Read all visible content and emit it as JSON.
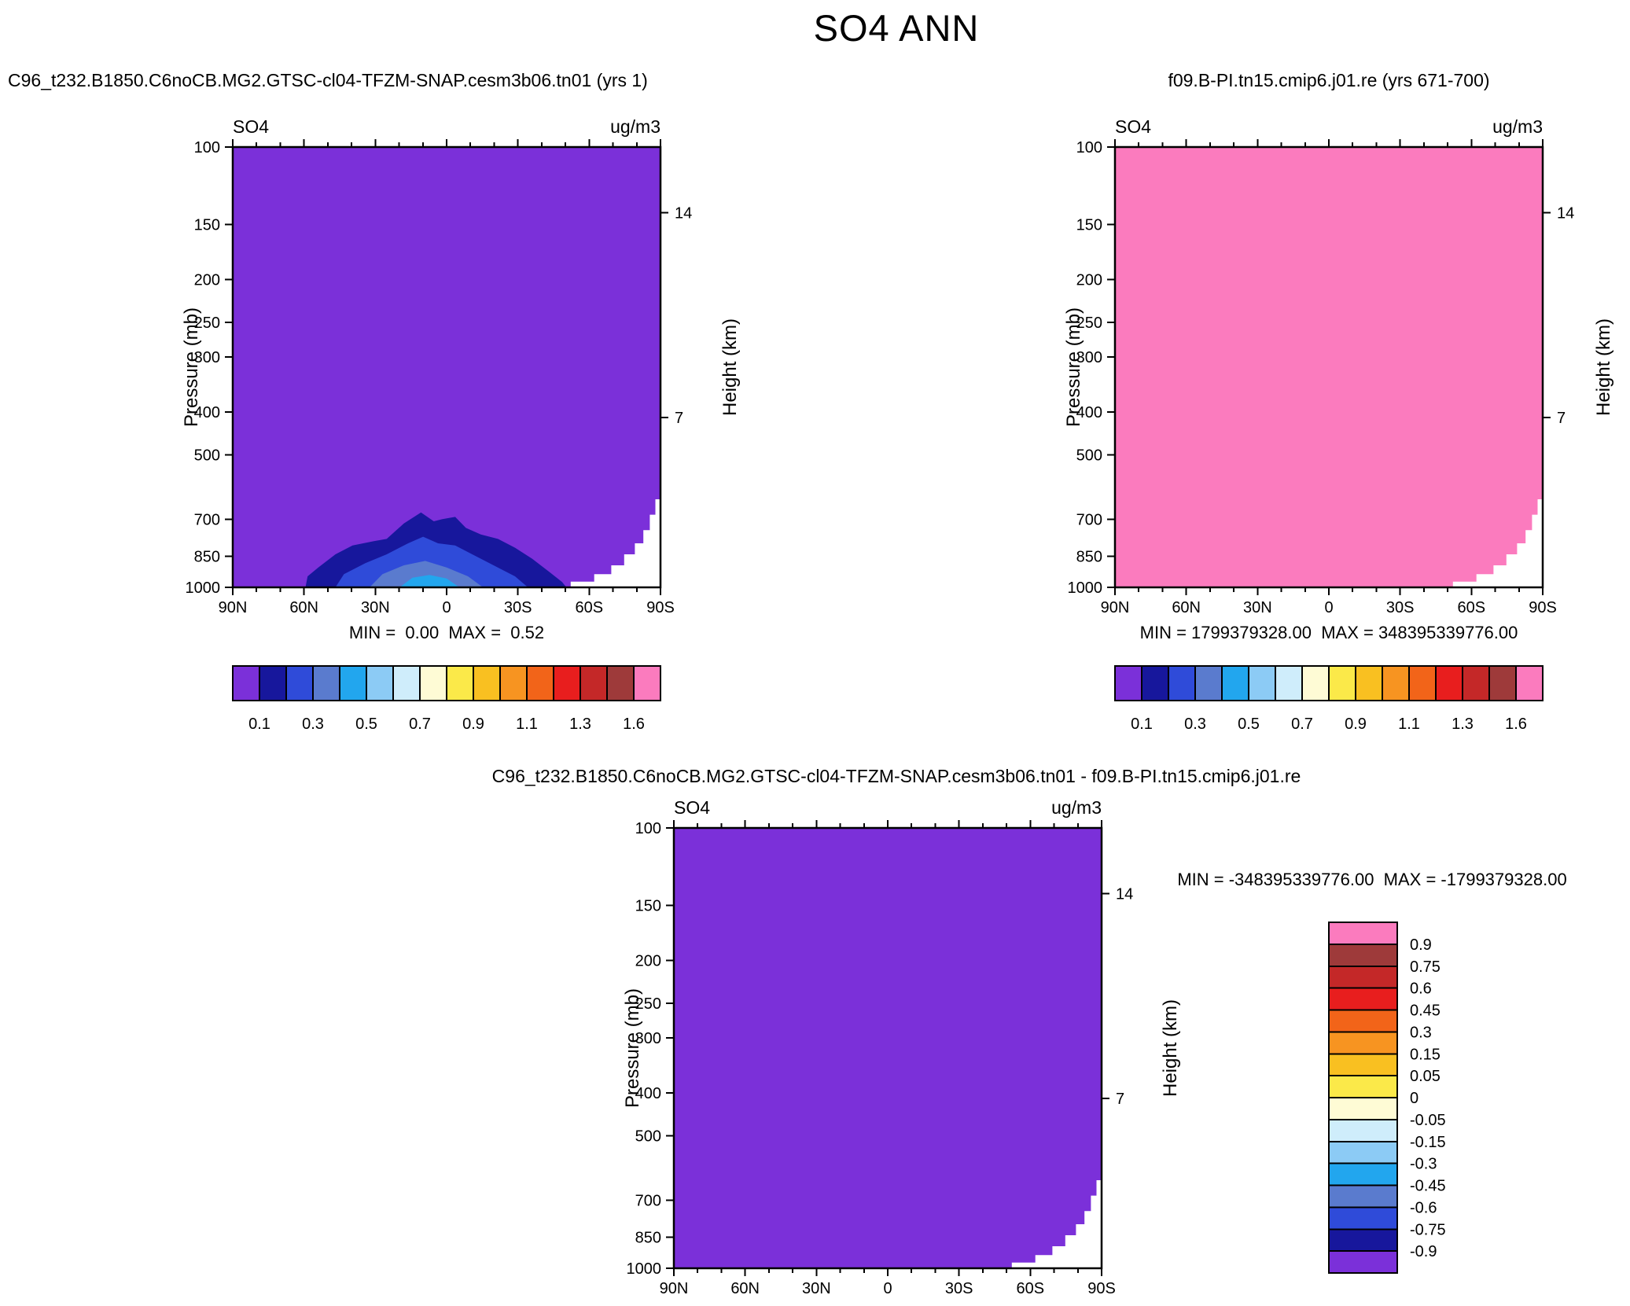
{
  "title": "SO4 ANN",
  "colormap": [
    "#7B30D9",
    "#17179C",
    "#2F4BD9",
    "#5A7BCE",
    "#22A6EE",
    "#8CCBF5",
    "#CFEDFB",
    "#FEFBD5",
    "#FBE949",
    "#F9C021",
    "#F79421",
    "#F26419",
    "#E81E1E",
    "#C42828",
    "#9E3A3A",
    "#FB7BBE"
  ],
  "chart_data": [
    {
      "type": "filled-contour",
      "title": "C96_t232.B1850.C6noCB.MG2.GTSC-cl04-TFZM-SNAP.cesm3b06.tn01 (yrs 1)",
      "variable": "SO4",
      "units": "ug/m3",
      "season": "ANN",
      "min": 0.0,
      "max": 0.52,
      "minmax_text": "MIN =  0.00  MAX =  0.52",
      "xaxis": {
        "ticks": [
          "90N",
          "60N",
          "30N",
          "0",
          "30S",
          "60S",
          "90S"
        ]
      },
      "yaxis": {
        "label": "Pressure (mb)",
        "scale": "log",
        "ticks": [
          100,
          150,
          200,
          250,
          300,
          400,
          500,
          700,
          850,
          1000
        ]
      },
      "yaxis2": {
        "label": "Height (km)",
        "ticks": [
          14,
          7
        ],
        "tick_pressures": [
          141,
          411
        ]
      },
      "colorbar": {
        "orientation": "horizontal",
        "labels": [
          "0.1",
          "0.3",
          "0.5",
          "0.7",
          "0.9",
          "1.1",
          "1.3",
          "1.6"
        ]
      },
      "field": {
        "description": "Zonal-mean SO4: below 0.1 ug/m3 (purple) almost everywhere; values rise to ~0.5 ug/m3 near the surface between ~35N and ~45S, peaking near 700 mb over the tropics; white stepped topography mask near 90S",
        "background_color_index": 0,
        "contours": [
          {
            "level": "0.1-0.2",
            "color_index": 1,
            "points": [
              [
                0.17,
                0
              ],
              [
                0.175,
                0.025
              ],
              [
                0.2,
                0.045
              ],
              [
                0.24,
                0.075
              ],
              [
                0.28,
                0.095
              ],
              [
                0.33,
                0.105
              ],
              [
                0.36,
                0.11
              ],
              [
                0.4,
                0.145
              ],
              [
                0.44,
                0.17
              ],
              [
                0.47,
                0.15
              ],
              [
                0.49,
                0.155
              ],
              [
                0.52,
                0.16
              ],
              [
                0.545,
                0.135
              ],
              [
                0.58,
                0.12
              ],
              [
                0.62,
                0.11
              ],
              [
                0.66,
                0.09
              ],
              [
                0.7,
                0.065
              ],
              [
                0.74,
                0.035
              ],
              [
                0.77,
                0.012
              ],
              [
                0.78,
                0
              ]
            ]
          },
          {
            "level": "0.2-0.3",
            "color_index": 2,
            "points": [
              [
                0.24,
                0
              ],
              [
                0.26,
                0.03
              ],
              [
                0.31,
                0.055
              ],
              [
                0.36,
                0.075
              ],
              [
                0.41,
                0.1
              ],
              [
                0.445,
                0.115
              ],
              [
                0.48,
                0.1
              ],
              [
                0.52,
                0.095
              ],
              [
                0.56,
                0.075
              ],
              [
                0.61,
                0.05
              ],
              [
                0.66,
                0.025
              ],
              [
                0.69,
                0
              ]
            ]
          },
          {
            "level": "0.3-0.4",
            "color_index": 3,
            "points": [
              [
                0.32,
                0
              ],
              [
                0.35,
                0.03
              ],
              [
                0.4,
                0.05
              ],
              [
                0.45,
                0.06
              ],
              [
                0.5,
                0.045
              ],
              [
                0.55,
                0.025
              ],
              [
                0.585,
                0
              ]
            ]
          },
          {
            "level": "0.4-0.52",
            "color_index": 4,
            "points": [
              [
                0.39,
                0
              ],
              [
                0.42,
                0.022
              ],
              [
                0.46,
                0.028
              ],
              [
                0.5,
                0.02
              ],
              [
                0.53,
                0
              ]
            ]
          }
        ],
        "topo": [
          [
            0.79,
            0
          ],
          [
            0.79,
            0.013
          ],
          [
            0.845,
            0.013
          ],
          [
            0.845,
            0.03
          ],
          [
            0.885,
            0.03
          ],
          [
            0.885,
            0.05
          ],
          [
            0.915,
            0.05
          ],
          [
            0.915,
            0.075
          ],
          [
            0.94,
            0.075
          ],
          [
            0.94,
            0.1
          ],
          [
            0.96,
            0.1
          ],
          [
            0.96,
            0.13
          ],
          [
            0.975,
            0.13
          ],
          [
            0.975,
            0.165
          ],
          [
            0.988,
            0.165
          ],
          [
            0.988,
            0.2
          ],
          [
            1.0,
            0.2
          ],
          [
            1.0,
            0
          ]
        ]
      }
    },
    {
      "type": "filled-contour",
      "title": "f09.B-PI.tn15.cmip6.j01.re (yrs 671-700)",
      "variable": "SO4",
      "units": "ug/m3",
      "season": "ANN",
      "min": 1799379328.0,
      "max": 348395339776.0,
      "minmax_text": "MIN = 1799379328.00  MAX = 348395339776.00",
      "xaxis": {
        "ticks": [
          "90N",
          "60N",
          "30N",
          "0",
          "30S",
          "60S",
          "90S"
        ]
      },
      "yaxis": {
        "label": "Pressure (mb)",
        "scale": "log",
        "ticks": [
          100,
          150,
          200,
          250,
          300,
          400,
          500,
          700,
          850,
          1000
        ]
      },
      "yaxis2": {
        "label": "Height (km)",
        "ticks": [
          14,
          7
        ],
        "tick_pressures": [
          141,
          411
        ]
      },
      "colorbar": {
        "orientation": "horizontal",
        "labels": [
          "0.1",
          "0.3",
          "0.5",
          "0.7",
          "0.9",
          "1.1",
          "1.3",
          "1.6"
        ]
      },
      "field": {
        "description": "Field exceeds the highest contour level (1.6) everywhere, so the entire cross-section is the top color (pink); white stepped topography mask near 90S",
        "background_color_index": 15,
        "contours": [],
        "topo": [
          [
            0.79,
            0
          ],
          [
            0.79,
            0.013
          ],
          [
            0.845,
            0.013
          ],
          [
            0.845,
            0.03
          ],
          [
            0.885,
            0.03
          ],
          [
            0.885,
            0.05
          ],
          [
            0.915,
            0.05
          ],
          [
            0.915,
            0.075
          ],
          [
            0.94,
            0.075
          ],
          [
            0.94,
            0.1
          ],
          [
            0.96,
            0.1
          ],
          [
            0.96,
            0.13
          ],
          [
            0.975,
            0.13
          ],
          [
            0.975,
            0.165
          ],
          [
            0.988,
            0.165
          ],
          [
            0.988,
            0.2
          ],
          [
            1.0,
            0.2
          ],
          [
            1.0,
            0
          ]
        ]
      }
    },
    {
      "type": "filled-contour-difference",
      "title": "C96_t232.B1850.C6noCB.MG2.GTSC-cl04-TFZM-SNAP.cesm3b06.tn01 - f09.B-PI.tn15.cmip6.j01.re",
      "variable": "SO4",
      "units": "ug/m3",
      "season": "ANN",
      "min": -348395339776.0,
      "max": -1799379328.0,
      "minmax_text": "MIN = -348395339776.00  MAX = -1799379328.00",
      "xaxis": {
        "ticks": [
          "90N",
          "60N",
          "30N",
          "0",
          "30S",
          "60S",
          "90S"
        ]
      },
      "yaxis": {
        "label": "Pressure (mb)",
        "scale": "log",
        "ticks": [
          100,
          150,
          200,
          250,
          300,
          400,
          500,
          700,
          850,
          1000
        ]
      },
      "yaxis2": {
        "label": "Height (km)",
        "ticks": [
          14,
          7
        ],
        "tick_pressures": [
          141,
          411
        ]
      },
      "colorbar": {
        "orientation": "vertical",
        "labels": [
          "0.9",
          "0.75",
          "0.6",
          "0.45",
          "0.3",
          "0.15",
          "0.05",
          "0",
          "-0.05",
          "-0.15",
          "-0.3",
          "-0.45",
          "-0.6",
          "-0.75",
          "-0.9"
        ]
      },
      "field": {
        "description": "Difference is below the lowest level (-0.9) everywhere, so the entire cross-section is the bottom color (purple); white stepped topography mask near 90S",
        "background_color_index": 0,
        "contours": [],
        "topo": [
          [
            0.79,
            0
          ],
          [
            0.79,
            0.013
          ],
          [
            0.845,
            0.013
          ],
          [
            0.845,
            0.03
          ],
          [
            0.885,
            0.03
          ],
          [
            0.885,
            0.05
          ],
          [
            0.915,
            0.05
          ],
          [
            0.915,
            0.075
          ],
          [
            0.94,
            0.075
          ],
          [
            0.94,
            0.1
          ],
          [
            0.96,
            0.1
          ],
          [
            0.96,
            0.13
          ],
          [
            0.975,
            0.13
          ],
          [
            0.975,
            0.165
          ],
          [
            0.988,
            0.165
          ],
          [
            0.988,
            0.2
          ],
          [
            1.0,
            0.2
          ],
          [
            1.0,
            0
          ]
        ]
      }
    }
  ]
}
